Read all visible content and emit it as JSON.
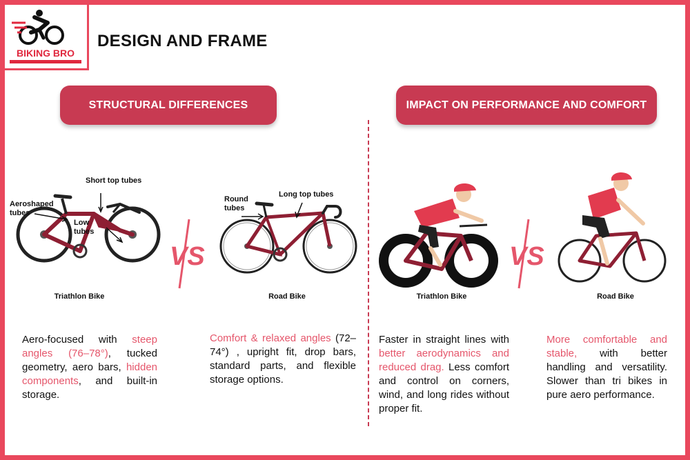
{
  "brand": {
    "name": "BIKING BRO",
    "accent": "#e9485d",
    "pill_color": "#c83a52"
  },
  "page_title": "DESIGN AND FRAME",
  "sections": {
    "structural": {
      "title": "STRUCTURAL DIFFERENCES"
    },
    "performance": {
      "title": "IMPACT ON PERFORMANCE AND COMFORT"
    }
  },
  "vs_label": "VS",
  "left_panel": {
    "triathlon_label": "Triathlon Bike",
    "road_label": "Road Bike",
    "annotations": {
      "aeroshaped": [
        "Aeroshaped",
        "tubes"
      ],
      "short_top": "Short top tubes",
      "low_tubes": [
        "Low",
        "tubes"
      ],
      "round_tubes": [
        "Round",
        "tubes"
      ],
      "long_top": "Long top tubes"
    }
  },
  "right_panel": {
    "triathlon_label": "Triathlon Bike",
    "road_label": "Road Bike"
  },
  "paragraphs": {
    "tri_structure": {
      "t1": "Aero-focused with ",
      "h1": "steep angles (76–78°)",
      "t2": ", tucked geometry, aero bars, ",
      "h2": "hidden components",
      "t3": ", and built-in storage."
    },
    "road_structure": {
      "h1": "Comfort & relaxed angles",
      "t1": " (72–74°) , upright fit, drop bars, standard parts, and flexible storage options."
    },
    "tri_performance": {
      "t1": "Faster in straight lines with ",
      "h1": "better aerodynamics and reduced drag.",
      "t2": " Less comfort and control on corners, wind, and long rides without proper fit."
    },
    "road_performance": {
      "h1": "More comfortable and stable,",
      "t1": " with better handling and versatility. Slower than tri bikes in pure aero performance."
    }
  }
}
